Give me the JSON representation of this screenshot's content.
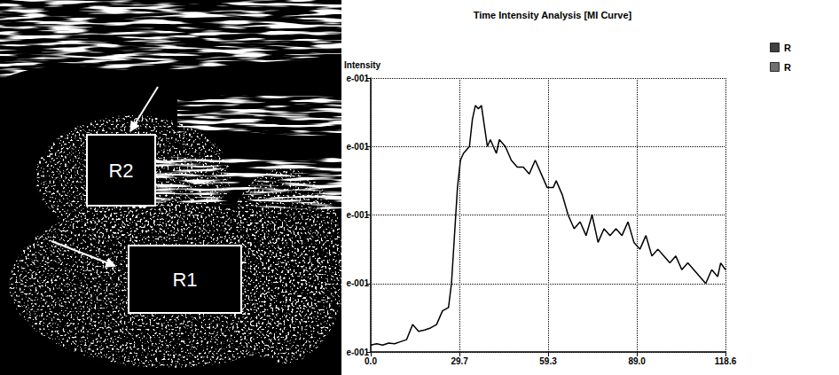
{
  "chart_data": {
    "type": "line",
    "title": "Time Intensity Analysis [MI Curve]",
    "y_label": "Intensity",
    "x": [
      0,
      2,
      4,
      6,
      8,
      10,
      12,
      14,
      16,
      18,
      20,
      22,
      24,
      26,
      27,
      28,
      29,
      30,
      31,
      33,
      34,
      35,
      36,
      37,
      38,
      39,
      40,
      42,
      43,
      45,
      47,
      49,
      51,
      53,
      55,
      57,
      59,
      61,
      62,
      64,
      66,
      68,
      70,
      72,
      74,
      76,
      78,
      80,
      82,
      84,
      86,
      88,
      90,
      92,
      94,
      96,
      98,
      100,
      102,
      104,
      106,
      108,
      110,
      112,
      114,
      116,
      117,
      118.6
    ],
    "series": [
      {
        "name": "R",
        "color": "#000000",
        "values": [
          0.11,
          0.112,
          0.11,
          0.113,
          0.112,
          0.115,
          0.118,
          0.14,
          0.13,
          0.132,
          0.135,
          0.14,
          0.16,
          0.165,
          0.2,
          0.27,
          0.34,
          0.38,
          0.39,
          0.4,
          0.44,
          0.46,
          0.455,
          0.46,
          0.43,
          0.4,
          0.41,
          0.39,
          0.41,
          0.4,
          0.38,
          0.37,
          0.37,
          0.36,
          0.38,
          0.36,
          0.34,
          0.34,
          0.35,
          0.33,
          0.3,
          0.28,
          0.29,
          0.27,
          0.3,
          0.26,
          0.28,
          0.27,
          0.28,
          0.27,
          0.29,
          0.26,
          0.25,
          0.27,
          0.24,
          0.25,
          0.24,
          0.23,
          0.24,
          0.22,
          0.23,
          0.22,
          0.21,
          0.2,
          0.22,
          0.21,
          0.23,
          0.22
        ]
      },
      {
        "name": "R",
        "color": "#404040",
        "values": [
          null,
          null,
          null,
          null,
          null,
          null,
          null,
          null,
          null,
          null,
          null,
          null,
          null,
          null,
          null,
          null,
          null,
          null,
          null,
          null,
          null,
          null,
          null,
          null,
          null,
          null,
          null,
          null,
          null,
          null,
          null,
          null,
          null,
          null,
          null,
          null,
          null,
          null,
          null,
          null,
          null,
          null,
          null,
          null,
          null,
          null,
          null,
          null,
          null,
          null,
          null,
          null,
          null,
          null,
          null,
          null,
          null,
          null,
          null,
          null,
          null,
          null,
          null,
          null,
          null,
          null,
          null,
          null
        ]
      }
    ],
    "xlim": [
      0,
      118.6
    ],
    "xticks": [
      {
        "value": 0,
        "label": "0.0"
      },
      29.7,
      59.3,
      {
        "value": 89,
        "label": "89.0"
      },
      118.6
    ],
    "ylim": [
      0.1,
      0.5
    ],
    "yticks": [
      {
        "value": 0.1,
        "label": "e-001"
      },
      {
        "value": 0.2,
        "label": "e-001"
      },
      {
        "value": 0.3,
        "label": "e-001"
      },
      {
        "value": 0.4,
        "label": "e-001"
      },
      {
        "value": 0.5,
        "label": "e-001"
      }
    ],
    "grid": true,
    "legend": "right"
  },
  "image": {
    "rois": [
      "R2",
      "R1"
    ]
  }
}
